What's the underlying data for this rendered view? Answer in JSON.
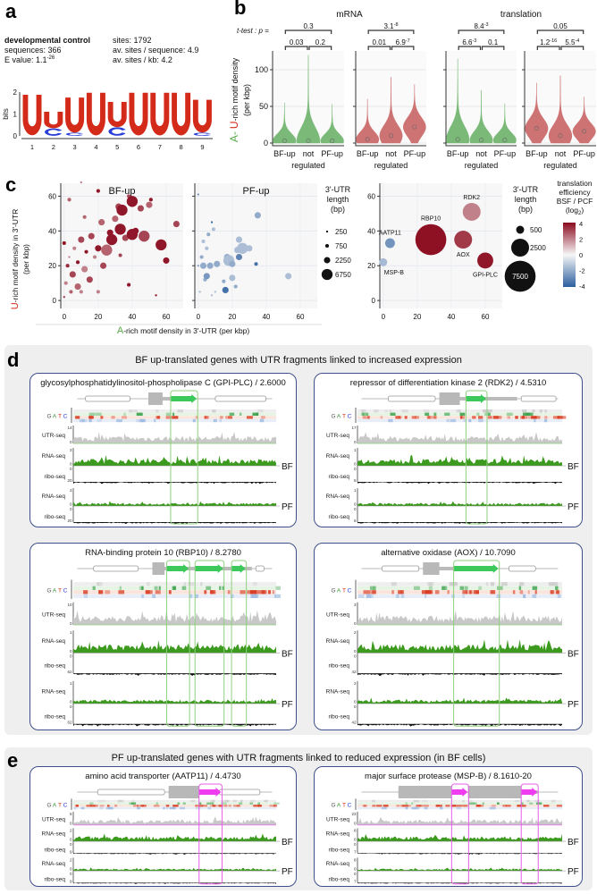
{
  "panel_labels": {
    "a": "a",
    "b": "b",
    "c": "c",
    "d": "d",
    "e": "e"
  },
  "a": {
    "title": "developmental control",
    "sequences": "sequences: 366",
    "evalue_prefix": "E value: 1.1",
    "evalue_exp": "-26",
    "sites": "sites: 1792",
    "av_seq": "av. sites / sequence: 4.9",
    "av_kb": "av. sites / kb: 4.2",
    "logo": {
      "ylabel": "bits",
      "yticks": [
        "0",
        "1",
        "2"
      ],
      "positions": [
        "1",
        "2",
        "3",
        "4",
        "5",
        "6",
        "7",
        "8",
        "9"
      ],
      "U_bits": [
        1.85,
        0.75,
        1.6,
        1.95,
        1.15,
        1.95,
        1.95,
        1.95,
        1.5
      ],
      "C_bits": [
        0.03,
        0.35,
        0.15,
        0.02,
        0.4,
        0.02,
        0.02,
        0.02,
        0.15
      ],
      "colors": {
        "U": "#d42a1a",
        "C": "#2a3fd8"
      }
    }
  },
  "chart_data": [
    {
      "type": "violin",
      "id": "b",
      "ttest_label": "t-test : p =",
      "ylabel_A": "A-",
      "ylabel_U": "U",
      "ylabel_rest": "-rich motif density",
      "ylabel_line2": "(per kbp)",
      "yticks": [
        "0",
        "50",
        "100"
      ],
      "ylim": [
        0,
        120
      ],
      "groups_titles": [
        "mRNA",
        "translation"
      ],
      "categories": [
        "BF-up",
        "not",
        "PF-up"
      ],
      "category_sub": "regulated",
      "plots": [
        {
          "color": "#6db36a",
          "p_top": "0.3",
          "p_top_exp": "",
          "p_left": "0.03",
          "p_left_exp": "",
          "p_right": "0.2",
          "p_right_exp": "",
          "max": [
            55,
            120,
            53
          ],
          "median": [
            3,
            3,
            3
          ]
        },
        {
          "color": "#c96565",
          "p_top": "3.1",
          "p_top_exp": "-8",
          "p_left": "0.01",
          "p_left_exp": "",
          "p_right": "6.9",
          "p_right_exp": "-7",
          "max": [
            60,
            90,
            80
          ],
          "median": [
            5,
            10,
            22
          ]
        },
        {
          "color": "#6db36a",
          "p_top": "8.4",
          "p_top_exp": "-3",
          "p_left": "6.6",
          "p_left_exp": "-3",
          "p_right": "0.1",
          "p_right_exp": "",
          "max": [
            115,
            72,
            54
          ],
          "median": [
            5,
            4,
            4
          ]
        },
        {
          "color": "#c96565",
          "p_top": "0.05",
          "p_top_exp": "",
          "p_left": "1.2",
          "p_left_exp": "-16",
          "p_right": "5.5",
          "p_right_exp": "-4",
          "max": [
            82,
            92,
            63
          ],
          "median": [
            20,
            10,
            16
          ]
        }
      ]
    },
    {
      "type": "scatter",
      "id": "c",
      "ylabel_U": "U",
      "ylabel_rest": "-rich motif density in 3'-UTR",
      "ylabel_line2": "(per kbp)",
      "xlabel_A": "A",
      "xlabel_rest": "-rich motif density in 3'-UTR (per kbp)",
      "xticks": [
        "0",
        "20",
        "40",
        "60"
      ],
      "yticks": [
        "0",
        "20",
        "40",
        "60"
      ],
      "xlim": [
        -2,
        70
      ],
      "ylim": [
        -2,
        70
      ],
      "panels": [
        {
          "title": "BF-up",
          "points": [
            [
              0,
              2,
              250,
              3
            ],
            [
              1,
              10,
              750,
              2
            ],
            [
              2,
              20,
              750,
              3.5
            ],
            [
              3,
              25,
              250,
              2
            ],
            [
              0,
              33,
              750,
              3.8
            ],
            [
              4,
              5,
              750,
              2.5
            ],
            [
              5,
              15,
              2250,
              3
            ],
            [
              6,
              30,
              750,
              2
            ],
            [
              8,
              8,
              2250,
              2.5
            ],
            [
              8,
              22,
              750,
              3.8
            ],
            [
              10,
              35,
              2250,
              3
            ],
            [
              10,
              5,
              750,
              2
            ],
            [
              12,
              18,
              2250,
              2
            ],
            [
              13,
              28,
              750,
              3.8
            ],
            [
              15,
              12,
              2250,
              3
            ],
            [
              16,
              37,
              2250,
              3
            ],
            [
              18,
              25,
              750,
              2
            ],
            [
              20,
              30,
              2250,
              3.8
            ],
            [
              20,
              5,
              750,
              2
            ],
            [
              22,
              45,
              2250,
              2.5
            ],
            [
              23,
              20,
              2250,
              3
            ],
            [
              25,
              29,
              6750,
              2.5
            ],
            [
              27,
              39,
              2250,
              3.8
            ],
            [
              28,
              35,
              6750,
              3.8
            ],
            [
              30,
              47,
              2250,
              2.5
            ],
            [
              32,
              54,
              2250,
              3
            ],
            [
              33,
              41,
              6750,
              3.8
            ],
            [
              33,
              26,
              750,
              3
            ],
            [
              34,
              52,
              6750,
              3.8
            ],
            [
              36,
              36,
              2250,
              3
            ],
            [
              38,
              60,
              750,
              3
            ],
            [
              40,
              38,
              6750,
              3.8
            ],
            [
              40,
              57,
              6750,
              3.8
            ],
            [
              42,
              40,
              2250,
              3.8
            ],
            [
              45,
              53,
              2250,
              3
            ],
            [
              47,
              37,
              6750,
              3
            ],
            [
              50,
              55,
              2250,
              2.5
            ],
            [
              51,
              58,
              750,
              3.8
            ],
            [
              57,
              32,
              6750,
              3.8
            ],
            [
              60,
              23,
              2250,
              3.8
            ],
            [
              66,
              44,
              2250,
              3
            ],
            [
              54,
              3,
              250,
              3.8
            ],
            [
              38,
              9,
              750,
              3.8
            ],
            [
              12,
              48,
              750,
              2.5
            ],
            [
              3,
              58,
              750,
              2.5
            ],
            [
              20,
              63,
              750,
              3.8
            ],
            [
              10,
              68,
              250,
              2
            ]
          ]
        },
        {
          "title": "PF-up",
          "points": [
            [
              0,
              61,
              250,
              -2.5
            ],
            [
              0,
              20,
              250,
              -2
            ],
            [
              1,
              5,
              250,
              -1.5
            ],
            [
              2,
              25,
              750,
              -2
            ],
            [
              3,
              34,
              750,
              -1.5
            ],
            [
              3,
              20,
              2250,
              -2
            ],
            [
              4,
              12,
              750,
              -2
            ],
            [
              5,
              30,
              750,
              -1.5
            ],
            [
              5,
              14,
              2250,
              -2.5
            ],
            [
              6,
              38,
              750,
              -2
            ],
            [
              7,
              20,
              2250,
              -2
            ],
            [
              8,
              45,
              250,
              -3.5
            ],
            [
              9,
              41,
              750,
              -1.5
            ],
            [
              10,
              5,
              250,
              -1.5
            ],
            [
              11,
              21,
              2250,
              -2
            ],
            [
              15,
              11,
              750,
              -2
            ],
            [
              16,
              6,
              2250,
              -3.5
            ],
            [
              17,
              25,
              2250,
              -2
            ],
            [
              18,
              23,
              6750,
              -1.5
            ],
            [
              20,
              21,
              2250,
              -2
            ],
            [
              20,
              13,
              2250,
              -1.5
            ],
            [
              22,
              8,
              750,
              -2
            ],
            [
              23,
              29,
              2250,
              -1.5
            ],
            [
              24,
              35,
              2250,
              -1.5
            ],
            [
              24,
              25,
              2250,
              -3
            ],
            [
              26,
              30,
              6750,
              -1.5
            ],
            [
              30,
              30,
              2250,
              -1.5
            ],
            [
              34,
              21,
              750,
              -3.5
            ],
            [
              35,
              49,
              2250,
              -2
            ],
            [
              53,
              14,
              2250,
              -1.5
            ],
            [
              8,
              3,
              250,
              -1.5
            ]
          ]
        },
        {
          "title": "",
          "points": [
            [
              4,
              33,
              750,
              -2.6,
              "AATP11"
            ],
            [
              0,
              22,
              500,
              -1.6,
              "MSP-B"
            ],
            [
              28,
              35,
              7500,
              3.9,
              "RBP10"
            ],
            [
              47,
              35,
              2500,
              3.2,
              "AOX"
            ],
            [
              52,
              51,
              2500,
              2.0,
              "RDK2"
            ],
            [
              60,
              23,
              2000,
              3.8,
              "GPI-PLC"
            ]
          ]
        }
      ],
      "size_legend_1": {
        "title": [
          "3'-UTR",
          "length",
          "(bp)"
        ],
        "values": [
          "250",
          "750",
          "2250",
          "6750"
        ]
      },
      "size_legend_2": {
        "title": [
          "3'-UTR",
          "length",
          "(bp)"
        ],
        "values": [
          "500",
          "2500",
          "7500"
        ]
      },
      "color_legend": {
        "title": [
          "translation",
          "efficiency",
          "BSF / PCF",
          "(log",
          "2",
          ")"
        ],
        "ticks": [
          "4",
          "2",
          "0",
          "-2",
          "-4"
        ],
        "range": [
          -4,
          4
        ],
        "colors": {
          "low": "#2c5e9e",
          "mid": "#f7f7f7",
          "high": "#8b0a1e"
        }
      }
    }
  ],
  "d": {
    "title": "BF up-translated genes with UTR fragments linked to increased expression",
    "highlight": "#8fd07f",
    "genes": [
      {
        "title": "glycosylphosphatidylinositol-phospholipase C (GPI-PLC) / 2.6000",
        "utr": "14",
        "rna": "3",
        "ribo": "20"
      },
      {
        "title": "repressor of differentiation kinase 2 (RDK2) / 4.5310",
        "utr": "17",
        "rna": "1",
        "ribo": "6"
      },
      {
        "title": "RNA-binding protein 10 (RBP10) / 8.2780",
        "utr": "10",
        "rna": "1",
        "ribo": "62"
      },
      {
        "title": "alternative oxidase (AOX) / 10.7090",
        "utr": "3",
        "rna": "2",
        "ribo": "42"
      }
    ]
  },
  "e": {
    "title": "PF up-translated genes with UTR fragments linked to reduced expression (in BF cells)",
    "highlight": "#e85ce8",
    "genes": [
      {
        "title": "amino acid transporter (AATP11) / 4.4730",
        "utr": "5",
        "rna": "2",
        "ribo": "9"
      },
      {
        "title": "major surface protease (MSP-B) / 8.1610-20",
        "utr": "23",
        "rna": "8",
        "ribo": "7"
      }
    ]
  },
  "tracks": {
    "nt": [
      "G",
      "A",
      "T",
      "C"
    ],
    "nt_colors": [
      "#555555",
      "#3a9a3a",
      "#d42a1a",
      "#2a3fd8"
    ],
    "utr": "UTR-seq",
    "rna": "RNA-seq",
    "ribo": "ribo-seq",
    "zero": "0",
    "bf": "BF",
    "pf": "PF",
    "colors": {
      "rna": "#3c9a1e",
      "ribo": "#111111",
      "utr": "#c8c8c8"
    }
  }
}
